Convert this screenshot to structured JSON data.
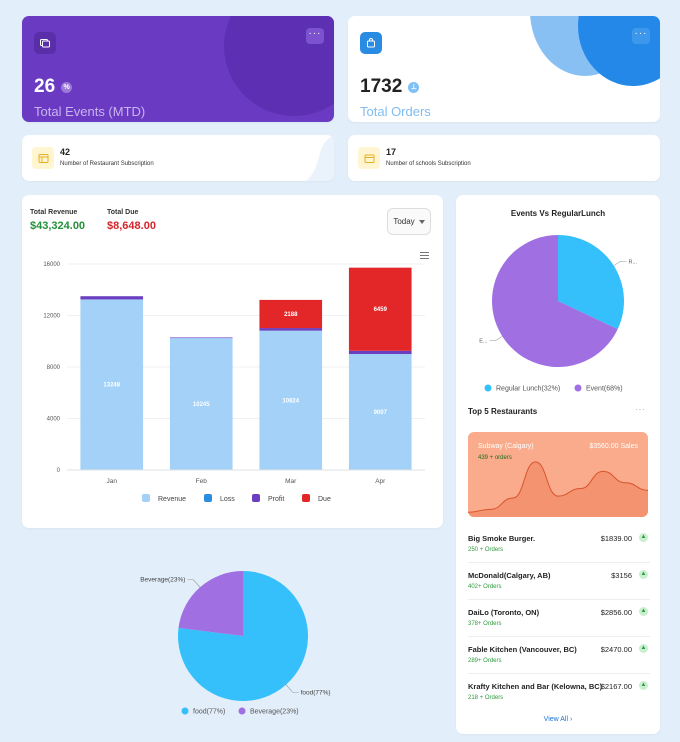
{
  "stats": {
    "events": {
      "value": "26",
      "badge": "%",
      "label": "Total Events (MTD)",
      "more": "···"
    },
    "orders": {
      "value": "1732",
      "badge": "⊥",
      "label": "Total Orders",
      "more": "···"
    }
  },
  "subscriptions": {
    "restaurant": {
      "count": "42",
      "label": "Number of Restaurant Subscription"
    },
    "schools": {
      "count": "17",
      "label": "Number of schools Subscription"
    }
  },
  "revenue": {
    "total_revenue_label": "Total Revenue",
    "total_revenue_value": "$43,324.00",
    "total_due_label": "Total Due",
    "total_due_value": "$8,648.00",
    "period": "Today"
  },
  "colors": {
    "revenue": "#a3d1f7",
    "loss": "#2b8de0",
    "profit": "#6a40c0",
    "due": "#e32729",
    "pie_blue": "#35c0fb",
    "pie_purple": "#a070e3"
  },
  "chart_data": [
    {
      "type": "bar",
      "stacked": true,
      "categories": [
        "Jan",
        "Feb",
        "Mar",
        "Apr"
      ],
      "y_ticks": [
        "0",
        "4000",
        "8000",
        "12000",
        "16000"
      ],
      "ylim": [
        0,
        16000
      ],
      "legend_position": "bottom",
      "series": [
        {
          "name": "Revenue",
          "values": [
            13248,
            10245,
            10824,
            9007
          ],
          "labels": [
            "13248",
            "10245",
            "10824",
            "9007"
          ]
        },
        {
          "name": "Loss",
          "values": [
            0,
            0,
            0,
            0
          ]
        },
        {
          "name": "Profit",
          "values": [
            250,
            50,
            200,
            250
          ]
        },
        {
          "name": "Due",
          "values": [
            0,
            0,
            2188,
            6459
          ],
          "labels": [
            "",
            "",
            "2188",
            "6459"
          ]
        }
      ]
    },
    {
      "type": "pie",
      "title": "Events Vs RegularLunch",
      "slices": [
        {
          "name": "Regular Lunch(32%)",
          "value": 32,
          "label": "R..."
        },
        {
          "name": "Event(68%)",
          "value": 68,
          "label": "E..."
        }
      ],
      "legend_position": "bottom"
    },
    {
      "type": "pie",
      "slices": [
        {
          "name": "food(77%)",
          "value": 77,
          "label": "food(77%)"
        },
        {
          "name": "Beverage(23%)",
          "value": 23,
          "label": "Beverage(23%)"
        }
      ],
      "legend_position": "bottom"
    },
    {
      "type": "area",
      "x": [
        0,
        1,
        2,
        3,
        4,
        5,
        6,
        7,
        8
      ],
      "y": [
        5,
        8,
        20,
        58,
        22,
        30,
        48,
        36,
        28
      ]
    }
  ],
  "top5": {
    "title": "Top 5 Restaurants",
    "more": "···",
    "highlight": {
      "name": "Subway (Calgary)",
      "amount": "$3560.00 Sales",
      "orders": "439 + orders"
    },
    "items": [
      {
        "name": "Big Smoke Burger.",
        "amount": "$1839.00",
        "orders": "250 + Orders"
      },
      {
        "name": "McDonald(Calgary, AB)",
        "amount": "$3156",
        "orders": "402+ Orders"
      },
      {
        "name": "DaiLo (Toronto, ON)",
        "amount": "$2856.00",
        "orders": "378+ Orders"
      },
      {
        "name": "Fable Kitchen (Vancouver, BC)",
        "amount": "$2470.00",
        "orders": "289+ Orders"
      },
      {
        "name": "Krafty Kitchen and Bar (Kelowna, BC)",
        "amount": "$2167.00",
        "orders": "218 + Orders"
      }
    ],
    "view_all": "View All"
  }
}
